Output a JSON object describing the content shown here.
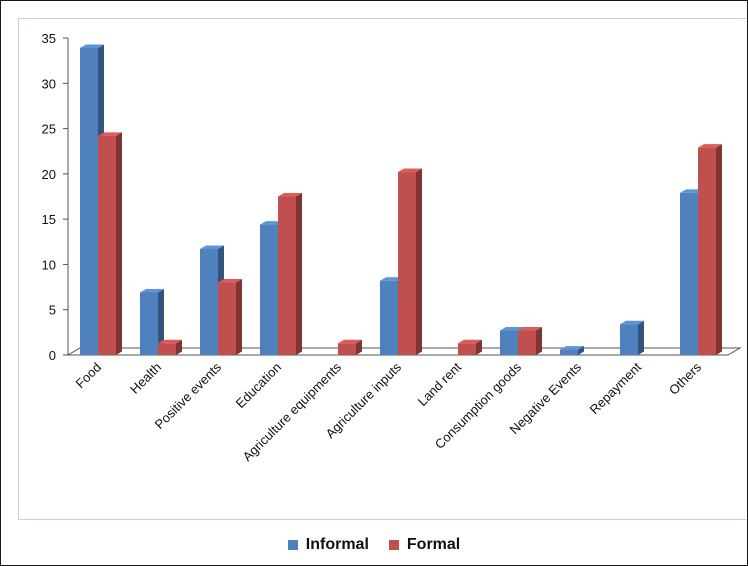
{
  "chart_data": {
    "type": "bar",
    "title": "",
    "xlabel": "",
    "ylabel": "",
    "ylim": [
      0,
      35
    ],
    "yticks": [
      0,
      5,
      10,
      15,
      20,
      25,
      30,
      35
    ],
    "categories": [
      "Food",
      "Health",
      "Positive events",
      "Education",
      "Agriculture equipments",
      "Agriculture inputs",
      "Land rent",
      "Consumption goods",
      "Negative Events",
      "Repayment",
      "Others"
    ],
    "series": [
      {
        "name": "Informal",
        "color": "#4f81bd",
        "values": [
          33.9,
          6.9,
          11.7,
          14.4,
          0,
          8.2,
          0,
          2.7,
          0.6,
          3.4,
          17.9
        ]
      },
      {
        "name": "Formal",
        "color": "#c0504d",
        "values": [
          24.2,
          1.3,
          8.0,
          17.5,
          1.3,
          20.2,
          1.3,
          2.7,
          0,
          0,
          22.9
        ]
      }
    ],
    "legend_position": "bottom",
    "grid": false,
    "style": "3d-clustered-column"
  }
}
